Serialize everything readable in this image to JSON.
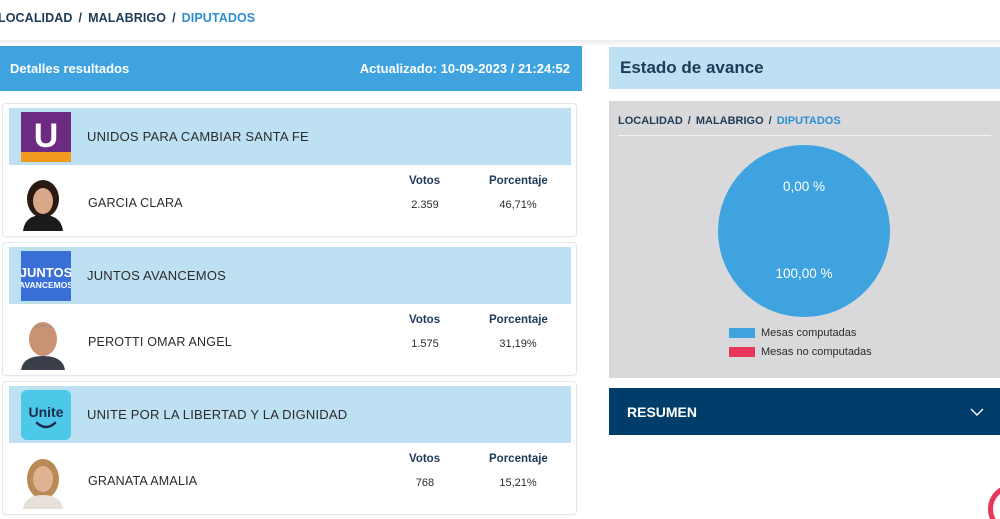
{
  "breadcrumb": {
    "level1": "LOCALIDAD",
    "level2": "MALABRIGO",
    "level3": "DIPUTADOS",
    "separator": "/"
  },
  "results": {
    "title": "Detalles resultados",
    "updated": "Actualizado: 10-09-2023 / 21:24:52",
    "votes_header": "Votos",
    "percent_header": "Porcentaje",
    "parties": [
      {
        "name": "UNIDOS PARA CAMBIAR SANTA FE",
        "logo_text": "U",
        "logo_color": "#7b2d8e",
        "candidate": "GARCIA CLARA",
        "votes": "2.359",
        "percent": "46,71%"
      },
      {
        "name": "JUNTOS AVANCEMOS",
        "logo_text": "JUNTOS",
        "logo_subtext": "AVANCEMOS",
        "logo_color": "#3a6fd8",
        "candidate": "PEROTTI OMAR ANGEL",
        "votes": "1.575",
        "percent": "31,19%"
      },
      {
        "name": "UNITE POR LA LIBERTAD Y LA DIGNIDAD",
        "logo_text": "Unite",
        "logo_color": "#4cc9e8",
        "candidate": "GRANATA AMALIA",
        "votes": "768",
        "percent": "15,21%"
      }
    ]
  },
  "estado": {
    "title": "Estado de avance",
    "breadcrumb": {
      "level1": "LOCALIDAD",
      "level2": "MALABRIGO",
      "level3": "DIPUTADOS",
      "separator": "/"
    },
    "pie_top_label": "0,00 %",
    "pie_bottom_label": "100,00 %",
    "computadas_fraction": 1.0,
    "legend": {
      "computadas": "Mesas computadas",
      "no_computadas": "Mesas no computadas"
    },
    "colors": {
      "computadas": "#3ea3df",
      "no_computadas": "#e8355a"
    }
  },
  "resumen": {
    "title": "RESUMEN",
    "icon": "chevron-down-icon"
  }
}
